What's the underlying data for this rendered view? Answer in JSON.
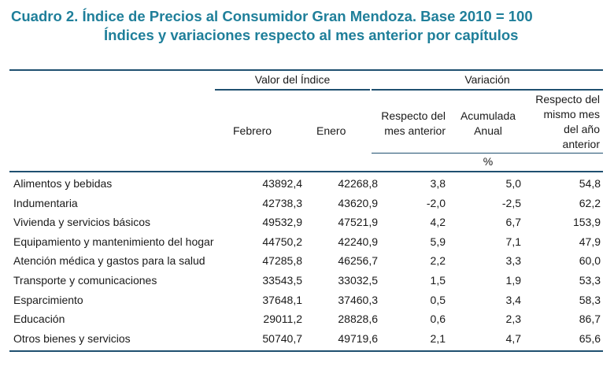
{
  "title": {
    "line1": "Cuadro 2. Índice de Precios al Consumidor Gran Mendoza. Base 2010 = 100",
    "line2": "Índices y variaciones respecto al mes anterior por capítulos"
  },
  "header": {
    "valor_indice": "Valor del Índice",
    "variacion": "Variación",
    "febrero": "Febrero",
    "enero": "Enero",
    "respecto_mes_line1": "Respecto del",
    "respecto_mes_line2": "mes anterior",
    "acumulada_line1": "Acumulada",
    "acumulada_line2": "Anual",
    "mismo_mes_line1": "Respecto del",
    "mismo_mes_line2": "mismo mes",
    "mismo_mes_line3": "del año",
    "mismo_mes_line4": "anterior",
    "unit": "%"
  },
  "rows": [
    {
      "name": "Alimentos y bebidas",
      "febrero": "43892,4",
      "enero": "42268,8",
      "mes": "3,8",
      "acumulada": "5,0",
      "anual": "54,8"
    },
    {
      "name": "Indumentaria",
      "febrero": "42738,3",
      "enero": "43620,9",
      "mes": "-2,0",
      "acumulada": "-2,5",
      "anual": "62,2"
    },
    {
      "name": "Vivienda y servicios básicos",
      "febrero": "49532,9",
      "enero": "47521,9",
      "mes": "4,2",
      "acumulada": "6,7",
      "anual": "153,9"
    },
    {
      "name": "Equipamiento y mantenimiento del hogar",
      "febrero": "44750,2",
      "enero": "42240,9",
      "mes": "5,9",
      "acumulada": "7,1",
      "anual": "47,9"
    },
    {
      "name": "Atención médica y gastos para la salud",
      "febrero": "47285,8",
      "enero": "46256,7",
      "mes": "2,2",
      "acumulada": "3,3",
      "anual": "60,0"
    },
    {
      "name": "Transporte y comunicaciones",
      "febrero": "33543,5",
      "enero": "33032,5",
      "mes": "1,5",
      "acumulada": "1,9",
      "anual": "53,3"
    },
    {
      "name": "Esparcimiento",
      "febrero": "37648,1",
      "enero": "37460,3",
      "mes": "0,5",
      "acumulada": "3,4",
      "anual": "58,3"
    },
    {
      "name": "Educación",
      "febrero": "29011,2",
      "enero": "28828,6",
      "mes": "0,6",
      "acumulada": "2,3",
      "anual": "86,7"
    },
    {
      "name": "Otros bienes y servicios",
      "febrero": "50740,7",
      "enero": "49719,6",
      "mes": "2,1",
      "acumulada": "4,7",
      "anual": "65,6"
    }
  ],
  "colors": {
    "title": "#1f7f9a",
    "rules": "#1f5070"
  }
}
